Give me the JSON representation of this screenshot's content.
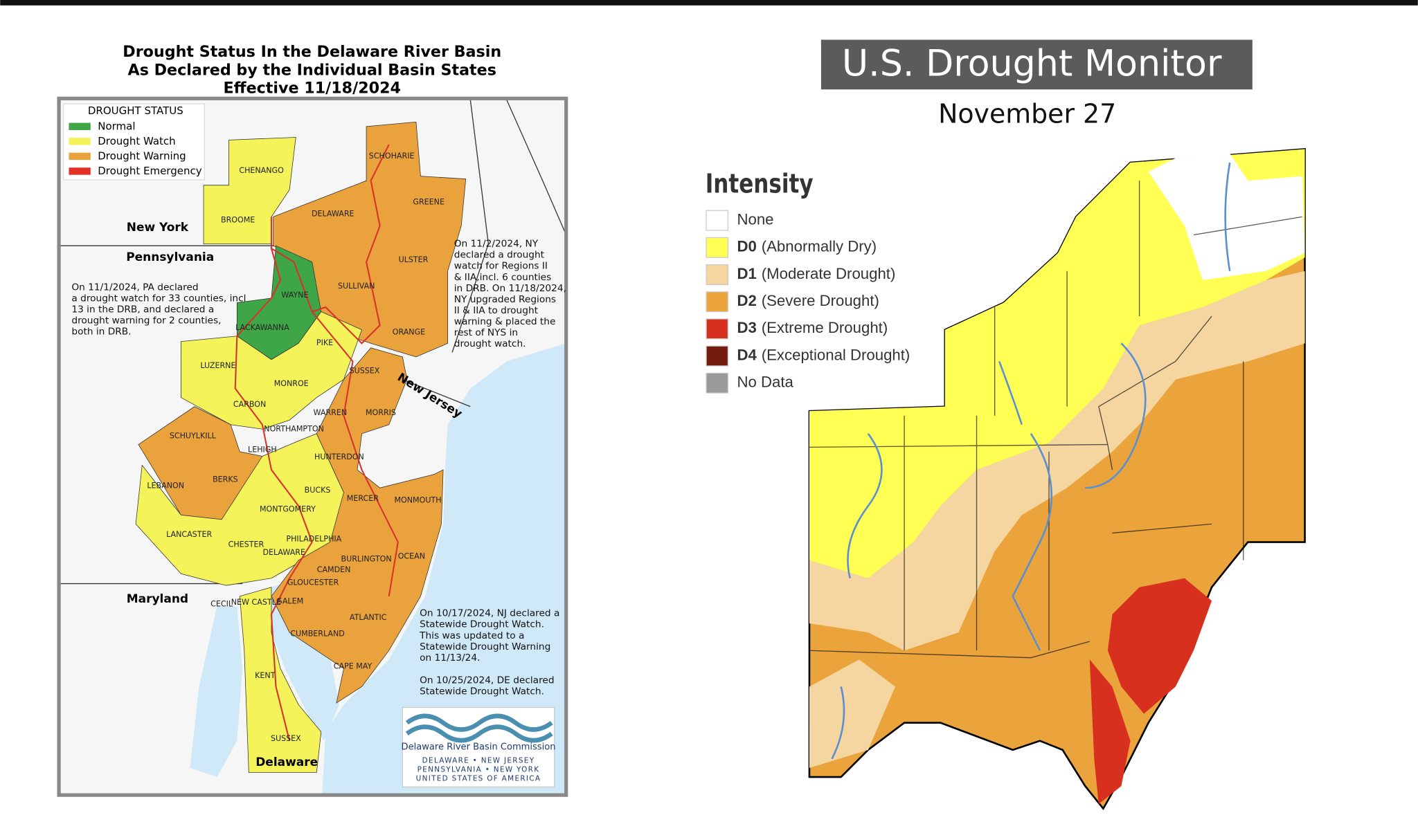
{
  "left_map": {
    "title": [
      "Drought Status In the Delaware River Basin",
      "As Declared by the Individual Basin States",
      "Effective 11/18/2024"
    ],
    "legend_title": "DROUGHT STATUS",
    "legend": [
      {
        "label": "Normal",
        "color": "#3fa648"
      },
      {
        "label": "Drought Watch",
        "color": "#f4f45a"
      },
      {
        "label": "Drought Warning",
        "color": "#eaa23d"
      },
      {
        "label": "Drought Emergency",
        "color": "#e23226"
      }
    ],
    "states": [
      "New York",
      "Pennsylvania",
      "New Jersey",
      "Maryland",
      "Delaware"
    ],
    "counties": [
      "CHENANGO",
      "BROOME",
      "SCHOHARIE",
      "DELAWARE",
      "GREENE",
      "ULSTER",
      "SULLIVAN",
      "WAYNE",
      "LACKAWANNA",
      "ORANGE",
      "PIKE",
      "LUZERNE",
      "SUSSEX",
      "MONROE",
      "CARBON",
      "WARREN",
      "MORRIS",
      "NORTHAMPTON",
      "SCHUYLKILL",
      "LEHIGH",
      "HUNTERDON",
      "BERKS",
      "LEBANON",
      "BUCKS",
      "MERCER",
      "MONMOUTH",
      "MONTGOMERY",
      "LANCASTER",
      "PHILADELPHIA",
      "CHESTER",
      "DELAWARE",
      "BURLINGTON",
      "OCEAN",
      "CAMDEN",
      "GLOUCESTER",
      "CECIL",
      "NEW CASTLE",
      "SALEM",
      "ATLANTIC",
      "CUMBERLAND",
      "CAPE MAY",
      "KENT",
      "SUSSEX"
    ],
    "notes": [
      [
        "On 11/1/2024, PA declared",
        "a drought watch for 33 counties, incl",
        "13 in the DRB, and declared a",
        "drought warning for 2 counties,",
        "both in DRB."
      ],
      [
        "On 11/2/2024, NY",
        "declared a drought",
        "watch for Regions II",
        "& IIA,incl. 6 counties",
        "in DRB. On 11/18/2024,",
        "NY upgraded Regions",
        "II & IIA to drought",
        "warning & placed the",
        "rest of NYS in",
        "drought watch."
      ],
      [
        "On 10/17/2024, NJ declared a",
        "Statewide Drought Watch.",
        "This was updated to a",
        "Statewide Drought Warning",
        "on 11/13/24."
      ],
      [
        "On 10/25/2024, DE declared",
        "Statewide Drought Watch."
      ]
    ],
    "logo": {
      "name": "Delaware River Basin Commission",
      "lines": [
        "DELAWARE  •  NEW JERSEY",
        "PENNSYLVANIA  •  NEW YORK",
        "UNITED STATES OF AMERICA"
      ]
    }
  },
  "right_map": {
    "title": "U.S. Drought Monitor",
    "date": "November 27",
    "legend_title": "Intensity",
    "legend": [
      {
        "label": "None",
        "color": "#ffffff"
      },
      {
        "code": "D0",
        "label": "(Abnormally Dry)",
        "color": "#ffff54"
      },
      {
        "code": "D1",
        "label": "(Moderate Drought)",
        "color": "#f5d6a0"
      },
      {
        "code": "D2",
        "label": "(Severe Drought)",
        "color": "#eaa43b"
      },
      {
        "code": "D3",
        "label": "(Extreme Drought)",
        "color": "#d7301f"
      },
      {
        "code": "D4",
        "label": "(Exceptional Drought)",
        "color": "#731c0e"
      },
      {
        "label": "No Data",
        "color": "#9a9a9a"
      }
    ]
  }
}
